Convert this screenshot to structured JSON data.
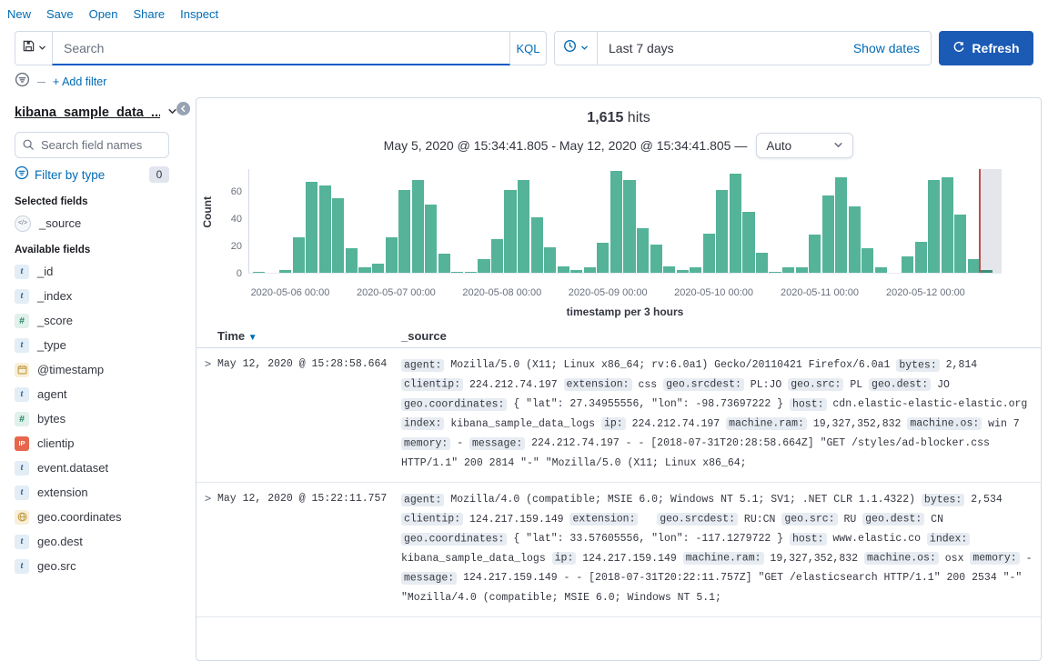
{
  "colors": {
    "accent": "#006BB4",
    "bar": "#54B399",
    "refresh_button": "#1B5BB5",
    "marker": "#C0504A"
  },
  "top_nav": {
    "items": [
      "New",
      "Save",
      "Open",
      "Share",
      "Inspect"
    ]
  },
  "query_bar": {
    "search_placeholder": "Search",
    "kql_label": "KQL",
    "time_range": "Last 7 days",
    "show_dates_label": "Show dates",
    "refresh_label": "Refresh"
  },
  "filter_bar": {
    "add_filter_label": "+ Add filter"
  },
  "sidebar": {
    "index_pattern": "kibana_sample_data_...",
    "search_placeholder": "Search field names",
    "filter_by_type_label": "Filter by type",
    "filter_count": "0",
    "selected_heading": "Selected fields",
    "selected_fields": [
      {
        "name": "_source",
        "type": "source"
      }
    ],
    "available_heading": "Available fields",
    "available_fields": [
      {
        "name": "_id",
        "type": "string"
      },
      {
        "name": "_index",
        "type": "string"
      },
      {
        "name": "_score",
        "type": "number"
      },
      {
        "name": "_type",
        "type": "string"
      },
      {
        "name": "@timestamp",
        "type": "date"
      },
      {
        "name": "agent",
        "type": "string"
      },
      {
        "name": "bytes",
        "type": "number"
      },
      {
        "name": "clientip",
        "type": "ip"
      },
      {
        "name": "event.dataset",
        "type": "string"
      },
      {
        "name": "extension",
        "type": "string"
      },
      {
        "name": "geo.coordinates",
        "type": "geo"
      },
      {
        "name": "geo.dest",
        "type": "string"
      },
      {
        "name": "geo.src",
        "type": "string"
      }
    ]
  },
  "main": {
    "hits_count": "1,615",
    "hits_label": "hits",
    "time_range_text": "May 5, 2020 @ 15:34:41.805 - May 12, 2020 @ 15:34:41.805 —",
    "interval_value": "Auto"
  },
  "chart_data": {
    "type": "bar",
    "title": "",
    "xlabel": "timestamp per 3 hours",
    "ylabel": "Count",
    "ylim": [
      0,
      77
    ],
    "yticks": [
      0,
      20,
      40,
      60
    ],
    "x_tick_labels": [
      "2020-05-06 00:00",
      "2020-05-07 00:00",
      "2020-05-08 00:00",
      "2020-05-09 00:00",
      "2020-05-10 00:00",
      "2020-05-11 00:00",
      "2020-05-12 00:00"
    ],
    "bucket_interval_hours": 3,
    "values": [
      1,
      0,
      2,
      26,
      67,
      64,
      55,
      18,
      4,
      7,
      26,
      61,
      68,
      50,
      14,
      1,
      1,
      10,
      25,
      61,
      68,
      41,
      19,
      5,
      2,
      4,
      22,
      75,
      68,
      33,
      21,
      5,
      2,
      4,
      29,
      61,
      73,
      45,
      15,
      1,
      4,
      4,
      28,
      57,
      70,
      49,
      18,
      4,
      0,
      12,
      23,
      68,
      70,
      43,
      10,
      2
    ],
    "current_time_marker_after_index": 54,
    "legend": "off",
    "grid": "off"
  },
  "table": {
    "columns": [
      {
        "label": "Time",
        "sorted": "desc"
      },
      {
        "label": "_source"
      }
    ],
    "rows": [
      {
        "time": "May 12, 2020 @ 15:28:58.664",
        "source": [
          {
            "k": "agent:",
            "v": "Mozilla/5.0 (X11; Linux x86_64; rv:6.0a1) Gecko/20110421 Firefox/6.0a1"
          },
          {
            "k": "bytes:",
            "v": "2,814"
          },
          {
            "k": "clientip:",
            "v": "224.212.74.197"
          },
          {
            "k": "extension:",
            "v": "css"
          },
          {
            "k": "geo.srcdest:",
            "v": "PL:JO"
          },
          {
            "k": "geo.src:",
            "v": "PL"
          },
          {
            "k": "geo.dest:",
            "v": "JO"
          },
          {
            "k": "geo.coordinates:",
            "v": "{ \"lat\": 27.34955556, \"lon\": -98.73697222 }"
          },
          {
            "k": "host:",
            "v": "cdn.elastic-elastic-elastic.org"
          },
          {
            "k": "index:",
            "v": "kibana_sample_data_logs"
          },
          {
            "k": "ip:",
            "v": "224.212.74.197"
          },
          {
            "k": "machine.ram:",
            "v": "19,327,352,832"
          },
          {
            "k": "machine.os:",
            "v": "win 7"
          },
          {
            "k": "memory:",
            "v": "-"
          },
          {
            "k": "message:",
            "v": "224.212.74.197 - - [2018-07-31T20:28:58.664Z] \"GET /styles/ad-blocker.css HTTP/1.1\" 200 2814 \"-\" \"Mozilla/5.0 (X11; Linux x86_64;"
          }
        ]
      },
      {
        "time": "May 12, 2020 @ 15:22:11.757",
        "source": [
          {
            "k": "agent:",
            "v": "Mozilla/4.0 (compatible; MSIE 6.0; Windows NT 5.1; SV1; .NET CLR 1.1.4322)"
          },
          {
            "k": "bytes:",
            "v": "2,534"
          },
          {
            "k": "clientip:",
            "v": "124.217.159.149"
          },
          {
            "k": "extension:",
            "v": ""
          },
          {
            "k": "geo.srcdest:",
            "v": "RU:CN"
          },
          {
            "k": "geo.src:",
            "v": "RU"
          },
          {
            "k": "geo.dest:",
            "v": "CN"
          },
          {
            "k": "geo.coordinates:",
            "v": "{ \"lat\": 33.57605556, \"lon\": -117.1279722 }"
          },
          {
            "k": "host:",
            "v": "www.elastic.co"
          },
          {
            "k": "index:",
            "v": "kibana_sample_data_logs"
          },
          {
            "k": "ip:",
            "v": "124.217.159.149"
          },
          {
            "k": "machine.ram:",
            "v": "19,327,352,832"
          },
          {
            "k": "machine.os:",
            "v": "osx"
          },
          {
            "k": "memory:",
            "v": "-"
          },
          {
            "k": "message:",
            "v": "124.217.159.149 - - [2018-07-31T20:22:11.757Z] \"GET /elasticsearch HTTP/1.1\" 200 2534 \"-\" \"Mozilla/4.0 (compatible; MSIE 6.0; Windows NT 5.1;"
          }
        ]
      }
    ]
  }
}
